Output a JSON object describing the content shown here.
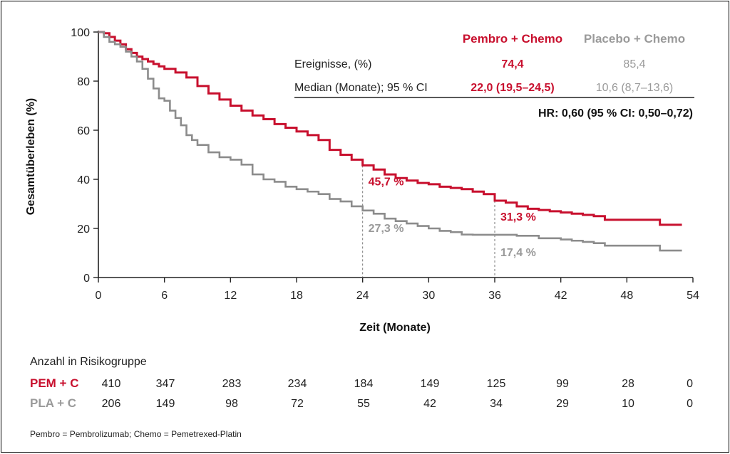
{
  "chart_data": {
    "type": "line",
    "title": "",
    "xlabel": "Zeit (Monate)",
    "ylabel": "Gesamtüberleben (%)",
    "xlim": [
      0,
      54
    ],
    "ylim": [
      0,
      100
    ],
    "xticks": [
      0,
      6,
      12,
      18,
      24,
      30,
      36,
      42,
      48,
      54
    ],
    "yticks": [
      0,
      20,
      40,
      60,
      80,
      100
    ],
    "grid": false,
    "series": [
      {
        "name": "Pembro + Chemo",
        "color": "#c8102e",
        "x": [
          0,
          0.5,
          1,
          1.5,
          2,
          2.5,
          3,
          3.5,
          4,
          4.5,
          5,
          5.5,
          6,
          7,
          8,
          9,
          10,
          11,
          12,
          13,
          14,
          15,
          16,
          17,
          18,
          19,
          20,
          21,
          22,
          23,
          24,
          25,
          26,
          27,
          28,
          29,
          30,
          31,
          32,
          33,
          34,
          35,
          36,
          37,
          38,
          39,
          40,
          41,
          42,
          43,
          44,
          45,
          46,
          47,
          48,
          49,
          50,
          51,
          52,
          53
        ],
        "y": [
          100,
          99.5,
          98,
          96.5,
          95,
          93,
          91.5,
          90,
          89,
          88,
          87,
          86,
          85,
          83.5,
          81.5,
          78,
          75,
          72.5,
          70,
          68,
          66,
          64.5,
          62.5,
          61,
          59.5,
          58,
          56,
          52,
          50,
          48,
          45.7,
          44,
          42,
          40.5,
          39.5,
          38.5,
          38,
          37,
          36.5,
          36,
          35,
          34,
          31.3,
          30.5,
          29,
          28,
          27.5,
          27,
          26.5,
          26,
          25.5,
          25,
          23.5,
          23.5,
          23.5,
          23.5,
          23.5,
          21.5,
          21.5,
          21.5
        ]
      },
      {
        "name": "Placebo + Chemo",
        "color": "#8c8c8c",
        "x": [
          0,
          0.5,
          1,
          1.5,
          2,
          2.5,
          3,
          3.5,
          4,
          4.5,
          5,
          5.5,
          6,
          6.5,
          7,
          7.5,
          8,
          8.5,
          9,
          10,
          11,
          12,
          13,
          14,
          15,
          16,
          17,
          18,
          19,
          20,
          21,
          22,
          23,
          24,
          25,
          26,
          27,
          28,
          29,
          30,
          31,
          32,
          33,
          34,
          35,
          36,
          37,
          38,
          39,
          40,
          41,
          42,
          43,
          44,
          45,
          46,
          47,
          48,
          49,
          50,
          51,
          52,
          53
        ],
        "y": [
          100,
          98,
          96,
          95,
          94,
          92,
          90,
          88,
          85,
          81,
          77,
          73,
          72,
          68,
          65,
          62,
          58,
          56,
          54,
          51,
          49,
          48,
          46,
          42,
          40,
          39,
          37,
          36,
          35,
          34,
          32,
          31,
          29,
          27.3,
          26,
          24,
          23,
          22,
          21,
          20,
          19,
          18.5,
          17.5,
          17.4,
          17.4,
          17.4,
          17.4,
          17,
          17,
          16,
          16,
          15.5,
          15,
          14.5,
          14,
          13,
          13,
          13,
          13,
          13,
          11,
          11,
          11
        ]
      }
    ],
    "annotations": [
      {
        "x": 24,
        "series": "Pembro + Chemo",
        "label": "45,7 %"
      },
      {
        "x": 24,
        "series": "Placebo + Chemo",
        "label": "27,3 %"
      },
      {
        "x": 36,
        "series": "Pembro + Chemo",
        "label": "31,3 %"
      },
      {
        "x": 36,
        "series": "Placebo + Chemo",
        "label": "17,4 %"
      }
    ],
    "reference_lines_x": [
      24,
      36
    ]
  },
  "stats_table": {
    "header_pem": "Pembro + Chemo",
    "header_pla": "Placebo + Chemo",
    "events_label": "Ereignisse, (%)",
    "events_pem": "74,4",
    "events_pla": "85,4",
    "median_label": "Median (Monate); 95 % CI",
    "median_pem": "22,0 (19,5–24,5)",
    "median_pla": "10,6 (8,7–13,6)",
    "hr": "HR: 0,60 (95 % CI: 0,50–0,72)"
  },
  "risk_table": {
    "title": "Anzahl in Risikogruppe",
    "pem_label": "PEM + C",
    "pla_label": "PLA + C",
    "pem_counts": [
      "410",
      "347",
      "283",
      "234",
      "184",
      "149",
      "125",
      "99",
      "28",
      "0"
    ],
    "pla_counts": [
      "206",
      "149",
      "98",
      "72",
      "55",
      "42",
      "34",
      "29",
      "10",
      "0"
    ]
  },
  "footnote": "Pembro = Pembrolizumab; Chemo = Pemetrexed-Platin"
}
